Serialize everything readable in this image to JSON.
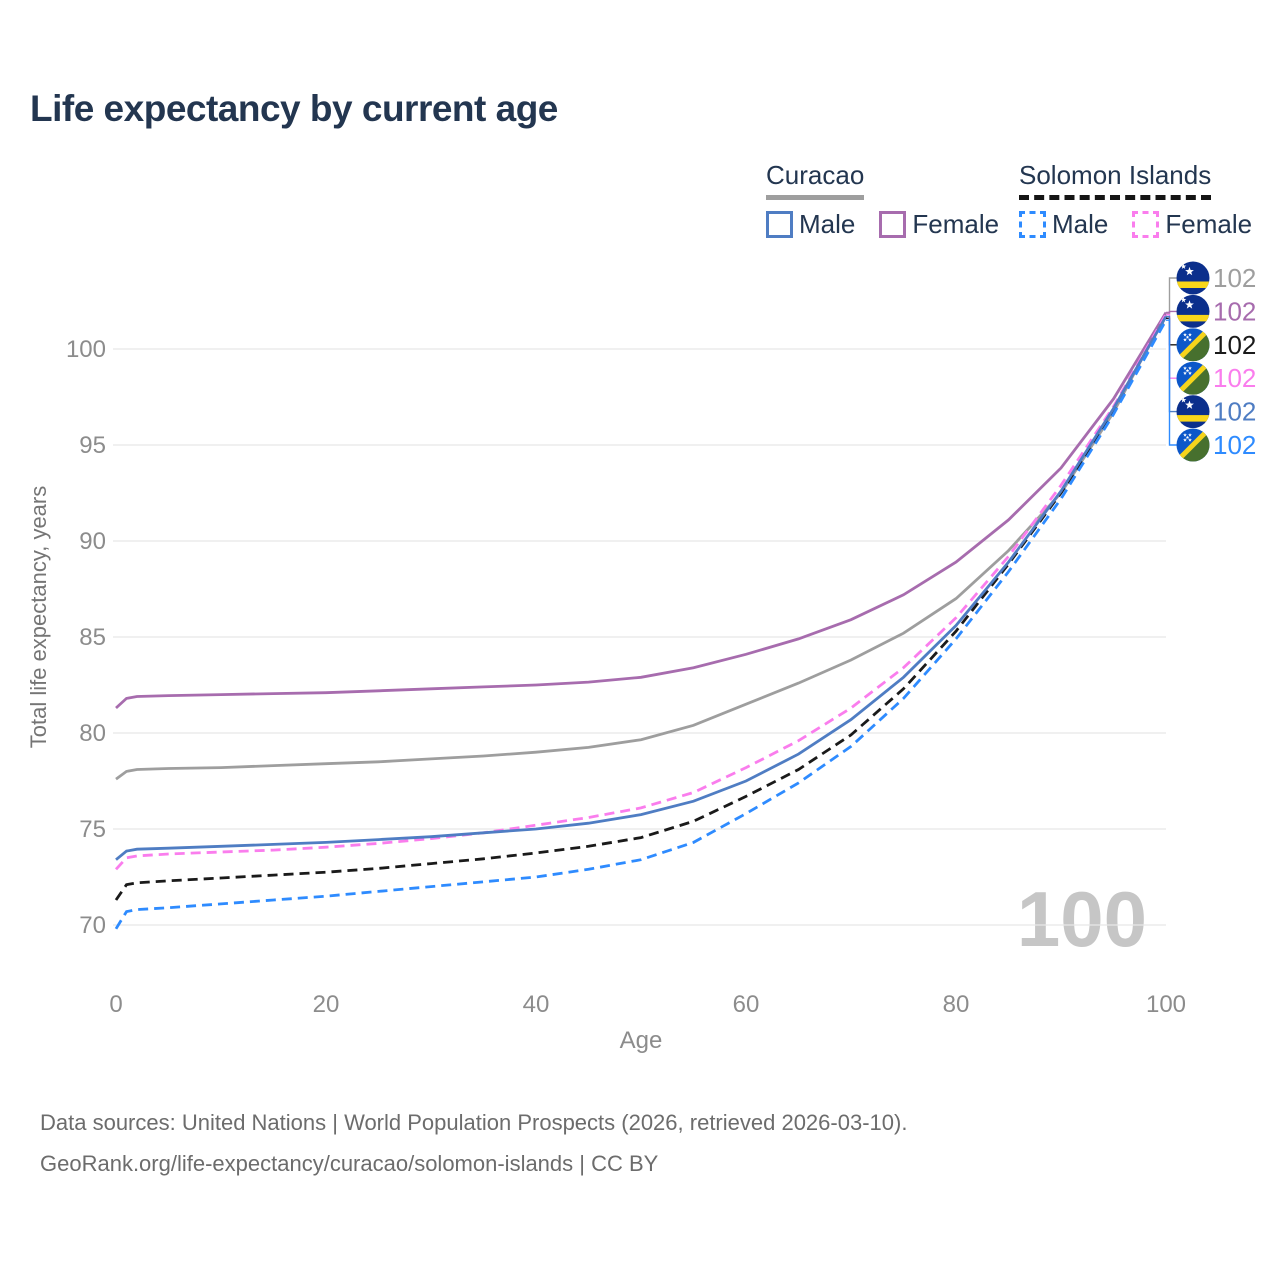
{
  "title": "Life expectancy by current age",
  "legend": {
    "groups": [
      {
        "label": "Curacao",
        "line_style": "solid",
        "underline_color": "#9e9e9e",
        "items": [
          {
            "label": "Male",
            "color": "#4f7dc3",
            "dashed": false
          },
          {
            "label": "Female",
            "color": "#a76cae",
            "dashed": false
          }
        ]
      },
      {
        "label": "Solomon Islands",
        "line_style": "dashed",
        "underline_color": "#151515",
        "items": [
          {
            "label": "Male",
            "color": "#2e8bff",
            "dashed": true
          },
          {
            "label": "Female",
            "color": "#fa7ded",
            "dashed": true
          }
        ]
      }
    ]
  },
  "chart_data": {
    "type": "line",
    "title": "Life expectancy by current age",
    "xlabel": "Age",
    "ylabel": "Total life expectancy, years",
    "x_ticks": [
      0,
      20,
      40,
      60,
      80,
      100
    ],
    "y_ticks": [
      70,
      75,
      80,
      85,
      90,
      95,
      100
    ],
    "xlim": [
      0,
      100
    ],
    "ylim": [
      68.5,
      103.5
    ],
    "grid": "horizontal",
    "legend_position": "top-right",
    "watermark": "100",
    "watermark_color": "#c6c6c6",
    "grid_color": "#e8e8e8",
    "axis_text_color": "#8c8c8c",
    "axis_title_color": "#757575",
    "x": [
      0,
      1,
      2,
      5,
      10,
      15,
      20,
      25,
      30,
      35,
      40,
      45,
      50,
      55,
      60,
      65,
      70,
      75,
      80,
      85,
      90,
      95,
      100
    ],
    "series": [
      {
        "id": "curacao-total",
        "name": "Curacao",
        "flag": "curacao",
        "color": "#9e9e9e",
        "dashed": false,
        "end_label": "102",
        "values": [
          77.6,
          78.0,
          78.1,
          78.15,
          78.2,
          78.3,
          78.4,
          78.5,
          78.65,
          78.8,
          79.0,
          79.25,
          79.65,
          80.4,
          81.5,
          82.6,
          83.8,
          85.2,
          87.0,
          89.5,
          92.5,
          96.7,
          101.85
        ]
      },
      {
        "id": "curacao-female",
        "name": "Curacao Female",
        "flag": "curacao",
        "color": "#a76cae",
        "dashed": false,
        "end_label": "102",
        "values": [
          81.3,
          81.8,
          81.9,
          81.95,
          82.0,
          82.05,
          82.1,
          82.2,
          82.3,
          82.4,
          82.5,
          82.65,
          82.9,
          83.4,
          84.1,
          84.9,
          85.9,
          87.2,
          88.9,
          91.1,
          93.8,
          97.4,
          101.9
        ]
      },
      {
        "id": "solomon-total",
        "name": "Solomon Islands",
        "flag": "solomon",
        "color": "#1a1a1a",
        "dashed": true,
        "end_label": "102",
        "values": [
          71.3,
          72.1,
          72.2,
          72.3,
          72.45,
          72.6,
          72.75,
          72.95,
          73.2,
          73.45,
          73.75,
          74.1,
          74.55,
          75.4,
          76.7,
          78.1,
          79.9,
          82.3,
          85.3,
          88.8,
          92.5,
          96.8,
          101.6
        ]
      },
      {
        "id": "solomon-female",
        "name": "Solomon Islands Female",
        "flag": "solomon",
        "color": "#fa7ded",
        "dashed": true,
        "end_label": "102",
        "values": [
          72.9,
          73.5,
          73.6,
          73.7,
          73.8,
          73.9,
          74.05,
          74.25,
          74.5,
          74.8,
          75.2,
          75.6,
          76.1,
          76.9,
          78.2,
          79.6,
          81.3,
          83.4,
          86.0,
          89.2,
          92.9,
          97.0,
          101.8
        ]
      },
      {
        "id": "curacao-male",
        "name": "Curacao Male",
        "flag": "curacao",
        "color": "#4f7dc3",
        "dashed": false,
        "end_label": "102",
        "values": [
          73.4,
          73.85,
          73.95,
          74.0,
          74.1,
          74.2,
          74.3,
          74.45,
          74.6,
          74.8,
          75.0,
          75.3,
          75.75,
          76.45,
          77.5,
          78.9,
          80.7,
          82.9,
          85.6,
          88.9,
          92.6,
          96.9,
          101.7
        ]
      },
      {
        "id": "solomon-male",
        "name": "Solomon Islands Male",
        "flag": "solomon",
        "color": "#2e8bff",
        "dashed": true,
        "end_label": "102",
        "values": [
          69.8,
          70.7,
          70.8,
          70.9,
          71.1,
          71.3,
          71.5,
          71.75,
          72.0,
          72.25,
          72.5,
          72.9,
          73.4,
          74.3,
          75.8,
          77.4,
          79.3,
          81.8,
          84.9,
          88.4,
          92.2,
          96.6,
          101.5
        ]
      }
    ],
    "flag_colors": {
      "curacao_blue": "#0b2f8c",
      "curacao_yellow": "#f9d61a",
      "solomon_blue": "#0c57c9",
      "solomon_green": "#47702e",
      "solomon_yellow": "#f6d41c"
    }
  },
  "footer": {
    "line1": "Data sources: United Nations | World Population Prospects (2026, retrieved 2026-03-10).",
    "line2": "GeoRank.org/life-expectancy/curacao/solomon-islands | CC BY"
  }
}
